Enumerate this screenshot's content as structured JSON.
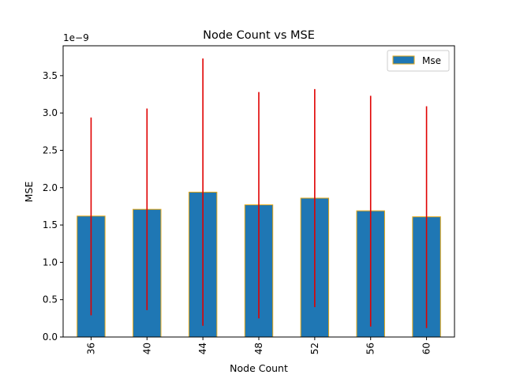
{
  "chart_data": {
    "type": "bar",
    "title": "Node Count vs MSE",
    "xlabel": "Node Count",
    "ylabel": "MSE",
    "y_scale_label": "1e−9",
    "y_multiplier": 1e-09,
    "ylim": [
      0,
      3.9
    ],
    "y_ticks": [
      0.0,
      0.5,
      1.0,
      1.5,
      2.0,
      2.5,
      3.0,
      3.5
    ],
    "y_tick_labels": [
      "0.0",
      "0.5",
      "1.0",
      "1.5",
      "2.0",
      "2.5",
      "3.0",
      "3.5"
    ],
    "categories": [
      "36",
      "40",
      "44",
      "48",
      "52",
      "56",
      "60"
    ],
    "series": [
      {
        "name": "Mse",
        "values": [
          1.62,
          1.71,
          1.94,
          1.77,
          1.86,
          1.69,
          1.61
        ],
        "error_low": [
          0.29,
          0.36,
          0.15,
          0.25,
          0.4,
          0.14,
          0.12
        ],
        "error_high": [
          2.94,
          3.06,
          3.73,
          3.28,
          3.32,
          3.23,
          3.09
        ]
      }
    ],
    "legend": {
      "position": "top-right",
      "entries": [
        "Mse"
      ]
    },
    "grid": false,
    "colors": {
      "bar_fill": "#1f77b4",
      "bar_edge": "#e6a817",
      "error_bar": "#e00000",
      "axis": "#000000"
    }
  }
}
